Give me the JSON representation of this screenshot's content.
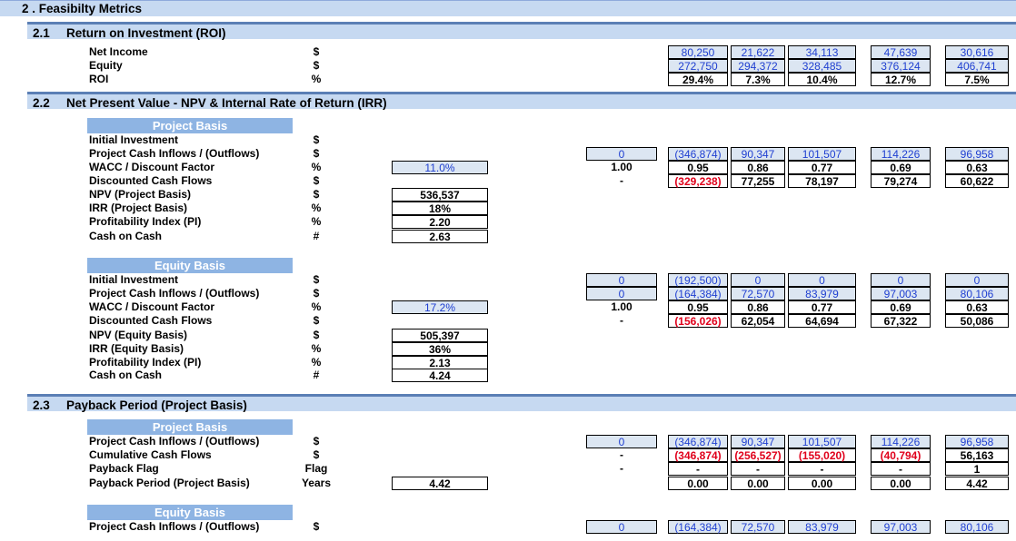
{
  "title": "2 . Feasibilty Metrics",
  "sections": [
    {
      "num": "2.1",
      "title": "Return on Investment (ROI)"
    },
    {
      "num": "2.2",
      "title": "Net Present Value - NPV & Internal Rate of Return (IRR)"
    },
    {
      "num": "2.3",
      "title": "Payback Period (Project Basis)"
    }
  ],
  "roi": {
    "rows": [
      {
        "label": "Net Income",
        "unit": "$",
        "values": [
          "80,250",
          "21,622",
          "34,113",
          "47,639",
          "30,616"
        ]
      },
      {
        "label": "Equity",
        "unit": "$",
        "values": [
          "272,750",
          "294,372",
          "328,485",
          "376,124",
          "406,741"
        ]
      },
      {
        "label": "ROI",
        "unit": "%",
        "values": [
          "29.4%",
          "7.3%",
          "10.4%",
          "12.7%",
          "7.5%"
        ]
      }
    ]
  },
  "project_basis": {
    "header": "Project Basis",
    "labels": [
      "Initial Investment",
      "Project Cash Inflows / (Outflows)",
      "WACC / Discount Factor",
      "Discounted Cash Flows",
      "NPV (Project Basis)",
      "IRR (Project Basis)",
      "Profitability Index (PI)",
      "Cash on Cash"
    ],
    "units": [
      "$",
      "$",
      "%",
      "$",
      "$",
      "%",
      "%",
      "#"
    ],
    "wacc": "11.0%",
    "results": [
      "536,537",
      "18%",
      "2.20",
      "2.63"
    ],
    "grid": [
      [
        "0",
        "(346,874)",
        "90,347",
        "101,507",
        "114,226",
        "96,958"
      ],
      [
        "1.00",
        "0.95",
        "0.86",
        "0.77",
        "0.69",
        "0.63"
      ],
      [
        "-",
        "(329,238)",
        "77,255",
        "78,197",
        "79,274",
        "60,622"
      ]
    ]
  },
  "equity_basis": {
    "header": "Equity Basis",
    "labels": [
      "Initial Investment",
      "Project Cash Inflows / (Outflows)",
      "WACC / Discount Factor",
      "Discounted Cash Flows",
      "NPV (Equity Basis)",
      "IRR (Equity Basis)",
      "Profitability Index (PI)",
      "Cash on Cash"
    ],
    "units": [
      "$",
      "$",
      "%",
      "$",
      "$",
      "%",
      "%",
      "#"
    ],
    "wacc": "17.2%",
    "results": [
      "505,397",
      "36%",
      "2.13",
      "4.24"
    ],
    "grid": [
      [
        "0",
        "(192,500)",
        "0",
        "0",
        "0",
        "0"
      ],
      [
        "0",
        "(164,384)",
        "72,570",
        "83,979",
        "97,003",
        "80,106"
      ],
      [
        "1.00",
        "0.95",
        "0.86",
        "0.77",
        "0.69",
        "0.63"
      ],
      [
        "-",
        "(156,026)",
        "62,054",
        "64,694",
        "67,322",
        "50,086"
      ]
    ]
  },
  "payback_project": {
    "header": "Project Basis",
    "labels": [
      "Project Cash Inflows / (Outflows)",
      "Cumulative Cash Flows",
      "Payback Flag",
      "Payback Period (Project Basis)"
    ],
    "units": [
      "$",
      "$",
      "Flag",
      "Years"
    ],
    "result": "4.42",
    "grid": [
      [
        "0",
        "(346,874)",
        "90,347",
        "101,507",
        "114,226",
        "96,958"
      ],
      [
        "-",
        "(346,874)",
        "(256,527)",
        "(155,020)",
        "(40,794)",
        "56,163"
      ],
      [
        "-",
        "-",
        "-",
        "-",
        "-",
        "1"
      ],
      [
        "",
        "0.00",
        "0.00",
        "0.00",
        "0.00",
        "4.42"
      ]
    ]
  },
  "payback_equity": {
    "header": "Equity Basis",
    "labels": [
      "Project Cash Inflows / (Outflows)"
    ],
    "units": [
      "$"
    ],
    "grid": [
      [
        "0",
        "(164,384)",
        "72,570",
        "83,979",
        "97,003",
        "80,106"
      ]
    ]
  }
}
